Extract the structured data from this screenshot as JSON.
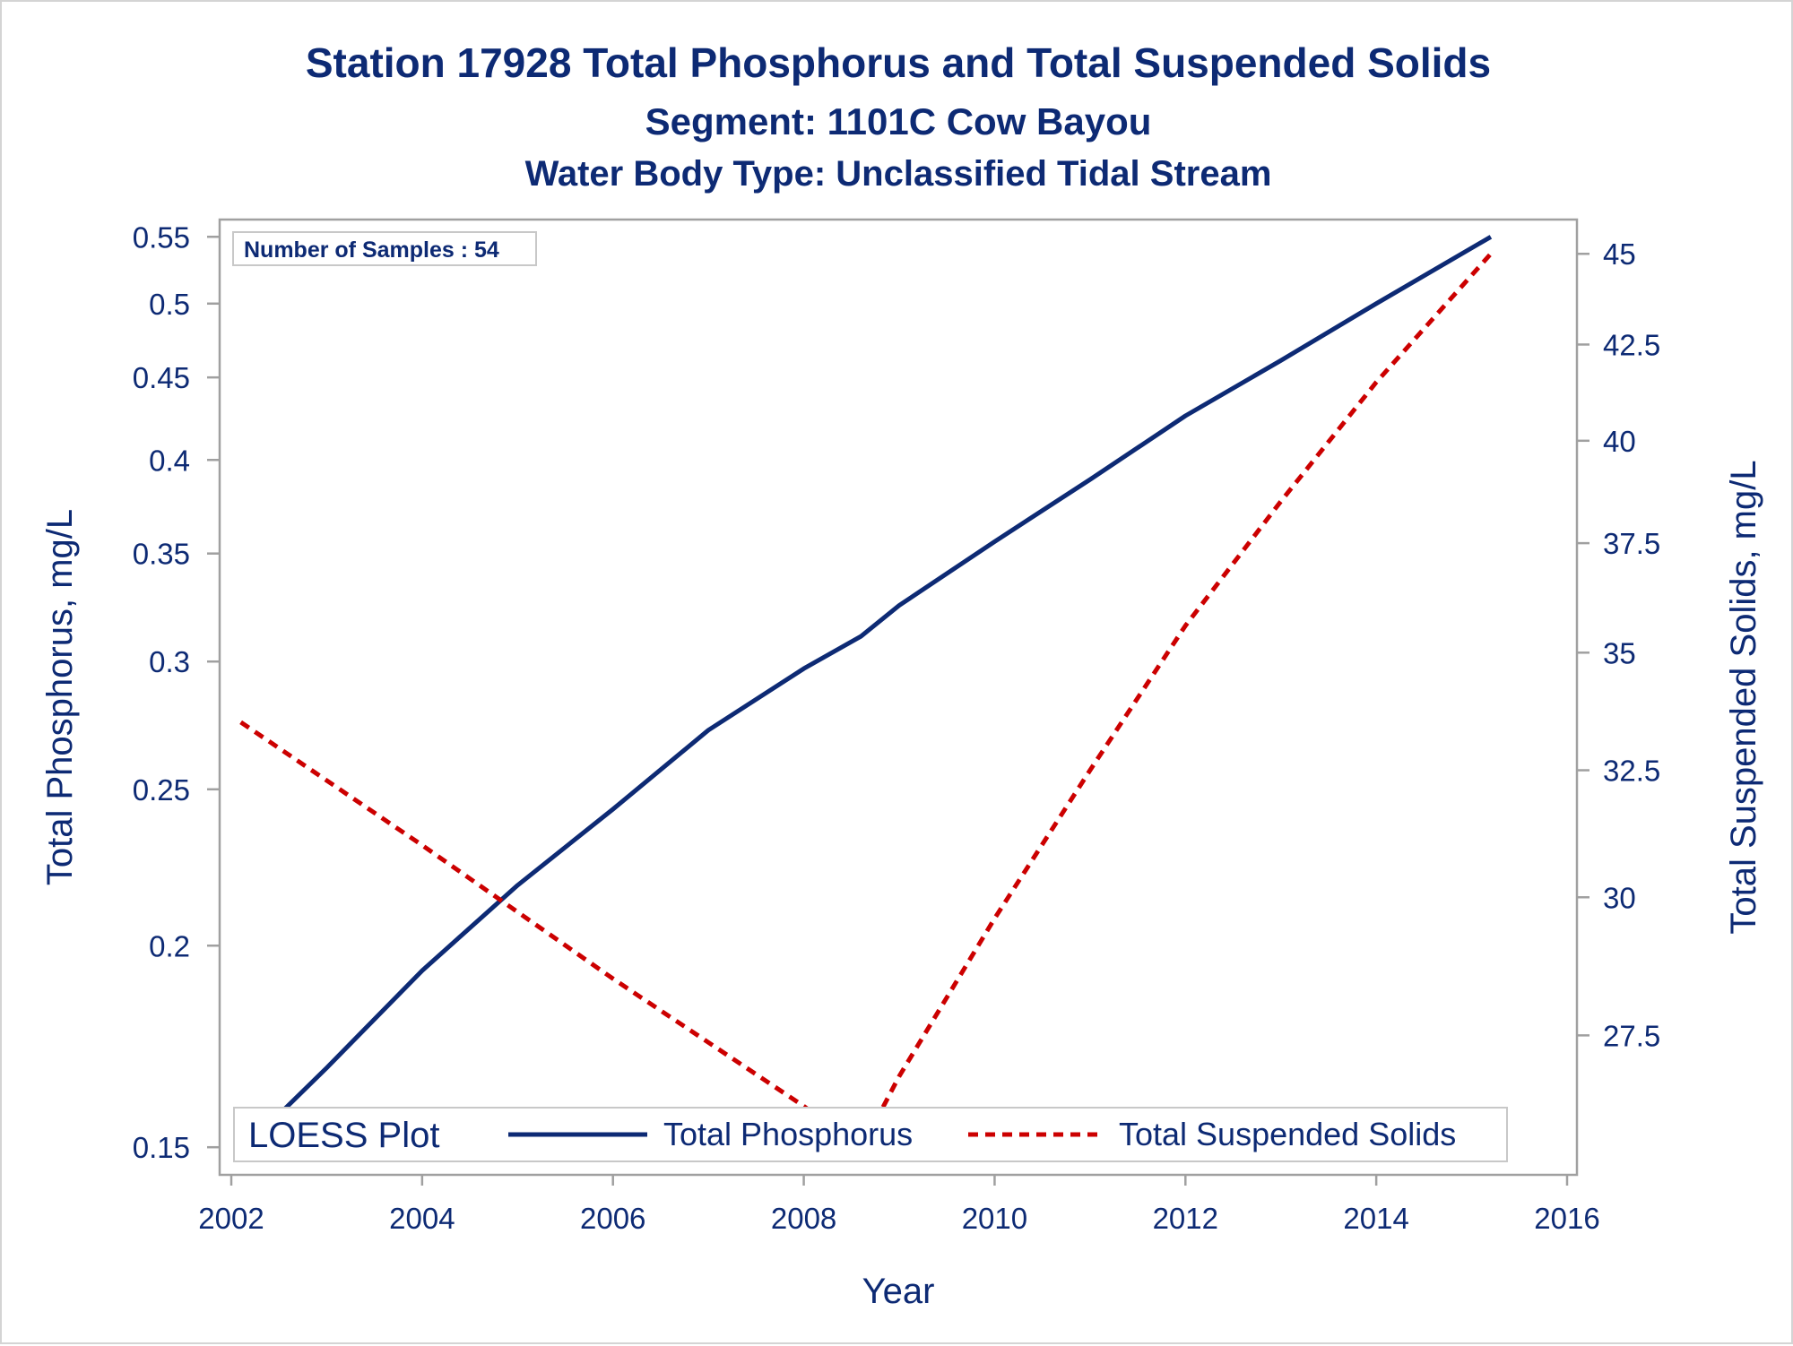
{
  "colors": {
    "text": "#0d2a74",
    "phosphorus_line": "#0d2a74",
    "tss_line": "#cc0000",
    "axis": "#a0a0a0"
  },
  "chart_data": {
    "type": "line",
    "title": "Station 17928  Total Phosphorus and Total Suspended Solids",
    "subtitle": "Segment: 1101C  Cow Bayou",
    "subtitle2": "Water Body Type: Unclassified Tidal Stream",
    "xlabel": "Year",
    "ylabel_left": "Total Phosphorus, mg/L",
    "ylabel_right": "Total Suspended Solids, mg/L",
    "annotation": "Number of Samples : 54",
    "x_range": [
      2002,
      2016
    ],
    "x_ticks": [
      "2002",
      "2004",
      "2006",
      "2008",
      "2010",
      "2012",
      "2014",
      "2016"
    ],
    "y_left_scale": "log",
    "y_left_range": [
      0.147,
      0.553
    ],
    "y_left_ticks": [
      "0.15",
      "0.2",
      "0.25",
      "0.3",
      "0.35",
      "0.4",
      "0.45",
      "0.5",
      "0.55"
    ],
    "y_right_scale": "log",
    "y_right_range": [
      25.53,
      45.44
    ],
    "y_right_ticks": [
      "27.5",
      "30",
      "32.5",
      "35",
      "37.5",
      "40",
      "42.5",
      "45"
    ],
    "grid": false,
    "legend": {
      "title": "LOESS Plot",
      "placement": "bottom-inside",
      "entries": [
        "Total Phosphorus",
        "Total Suspended Solids"
      ]
    },
    "series": [
      {
        "name": "Total Phosphorus",
        "axis": "left",
        "style": "solid",
        "x": [
          2002.1,
          2003.0,
          2004.0,
          2005.0,
          2006.0,
          2007.0,
          2008.0,
          2008.6,
          2009.0,
          2010.0,
          2011.0,
          2012.0,
          2013.0,
          2014.0,
          2015.2
        ],
        "y": [
          0.149,
          0.168,
          0.193,
          0.218,
          0.243,
          0.272,
          0.297,
          0.311,
          0.325,
          0.356,
          0.389,
          0.426,
          0.461,
          0.5,
          0.55
        ]
      },
      {
        "name": "Total Suspended Solids",
        "axis": "right",
        "style": "dashed",
        "x": [
          2002.1,
          2004.0,
          2006.0,
          2008.0,
          2008.6,
          2009.0,
          2010.0,
          2011.0,
          2012.0,
          2013.0,
          2014.0,
          2015.2
        ],
        "y": [
          33.5,
          31.0,
          28.5,
          26.3,
          25.6,
          26.8,
          29.6,
          32.5,
          35.6,
          38.5,
          41.5,
          45.0
        ]
      }
    ]
  }
}
